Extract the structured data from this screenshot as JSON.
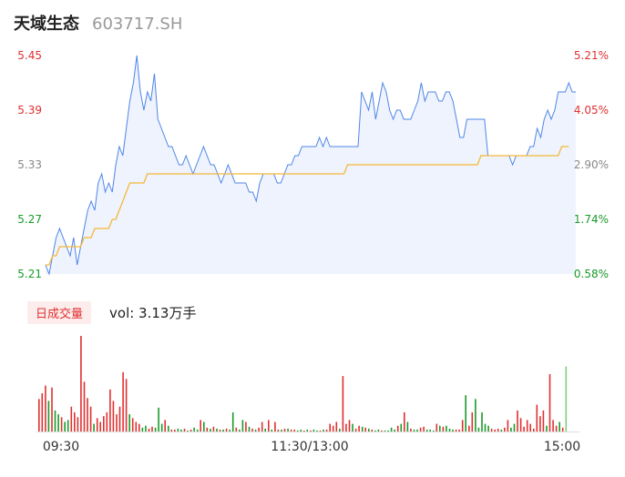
{
  "header": {
    "name": "天域生态",
    "code": "603717.SH"
  },
  "colors": {
    "up": "#e03030",
    "down": "#1a9a2a",
    "price": "#4f86e8",
    "avg": "#f5b83a",
    "fill": "#eef3fd",
    "axis": "#888888",
    "last": "#7fcf7f"
  },
  "chart_data": {
    "type": "line",
    "price_ticks": [
      "5.45",
      "5.39",
      "5.33",
      "5.27",
      "5.21"
    ],
    "percent_ticks": [
      "5.21%",
      "4.05%",
      "2.90%",
      "1.74%",
      "0.58%"
    ],
    "ylim": [
      5.21,
      5.45
    ],
    "time_ticks": [
      "09:30",
      "11:30/13:00",
      "15:00"
    ],
    "price": [
      5.22,
      5.21,
      5.23,
      5.25,
      5.26,
      5.25,
      5.24,
      5.23,
      5.25,
      5.22,
      5.24,
      5.26,
      5.28,
      5.29,
      5.28,
      5.31,
      5.32,
      5.3,
      5.31,
      5.3,
      5.33,
      5.35,
      5.34,
      5.37,
      5.4,
      5.42,
      5.45,
      5.41,
      5.39,
      5.41,
      5.4,
      5.43,
      5.38,
      5.37,
      5.36,
      5.35,
      5.35,
      5.34,
      5.33,
      5.33,
      5.34,
      5.33,
      5.32,
      5.33,
      5.34,
      5.35,
      5.34,
      5.33,
      5.33,
      5.32,
      5.31,
      5.32,
      5.33,
      5.32,
      5.31,
      5.31,
      5.31,
      5.31,
      5.3,
      5.3,
      5.29,
      5.31,
      5.32,
      5.32,
      5.32,
      5.32,
      5.31,
      5.31,
      5.32,
      5.33,
      5.33,
      5.34,
      5.34,
      5.35,
      5.35,
      5.35,
      5.35,
      5.35,
      5.36,
      5.35,
      5.36,
      5.35,
      5.35,
      5.35,
      5.35,
      5.35,
      5.35,
      5.35,
      5.35,
      5.35,
      5.41,
      5.4,
      5.39,
      5.41,
      5.38,
      5.4,
      5.42,
      5.41,
      5.39,
      5.38,
      5.39,
      5.39,
      5.38,
      5.38,
      5.38,
      5.39,
      5.4,
      5.42,
      5.4,
      5.41,
      5.41,
      5.41,
      5.4,
      5.4,
      5.41,
      5.41,
      5.4,
      5.38,
      5.36,
      5.36,
      5.38,
      5.38,
      5.38,
      5.38,
      5.38,
      5.38,
      5.34,
      5.34,
      5.34,
      5.34,
      5.34,
      5.34,
      5.34,
      5.33,
      5.34,
      5.34,
      5.34,
      5.34,
      5.35,
      5.35,
      5.37,
      5.36,
      5.38,
      5.39,
      5.38,
      5.39,
      5.41,
      5.41,
      5.41,
      5.42,
      5.41,
      5.41
    ],
    "avg": [
      5.22,
      5.22,
      5.23,
      5.23,
      5.24,
      5.24,
      5.24,
      5.24,
      5.24,
      5.24,
      5.24,
      5.25,
      5.25,
      5.25,
      5.26,
      5.26,
      5.26,
      5.26,
      5.26,
      5.27,
      5.27,
      5.28,
      5.29,
      5.3,
      5.31,
      5.31,
      5.31,
      5.31,
      5.31,
      5.32,
      5.32,
      5.32,
      5.32,
      5.32,
      5.32,
      5.32,
      5.32,
      5.32,
      5.32,
      5.32,
      5.32,
      5.32,
      5.32,
      5.32,
      5.32,
      5.32,
      5.32,
      5.32,
      5.32,
      5.32,
      5.32,
      5.32,
      5.32,
      5.32,
      5.32,
      5.32,
      5.32,
      5.32,
      5.32,
      5.32,
      5.32,
      5.32,
      5.32,
      5.32,
      5.32,
      5.32,
      5.32,
      5.32,
      5.32,
      5.32,
      5.32,
      5.32,
      5.32,
      5.32,
      5.32,
      5.32,
      5.32,
      5.32,
      5.32,
      5.32,
      5.32,
      5.32,
      5.32,
      5.32,
      5.32,
      5.32,
      5.33,
      5.33,
      5.33,
      5.33,
      5.33,
      5.33,
      5.33,
      5.33,
      5.33,
      5.33,
      5.33,
      5.33,
      5.33,
      5.33,
      5.33,
      5.33,
      5.33,
      5.33,
      5.33,
      5.33,
      5.33,
      5.33,
      5.33,
      5.33,
      5.33,
      5.33,
      5.33,
      5.33,
      5.33,
      5.33,
      5.33,
      5.33,
      5.33,
      5.33,
      5.33,
      5.33,
      5.33,
      5.33,
      5.34,
      5.34,
      5.34,
      5.34,
      5.34,
      5.34,
      5.34,
      5.34,
      5.34,
      5.34,
      5.34,
      5.34,
      5.34,
      5.34,
      5.34,
      5.34,
      5.34,
      5.34,
      5.34,
      5.34,
      5.34,
      5.34,
      5.34,
      5.35,
      5.35,
      5.35
    ],
    "volume": {
      "tab": "日成交量",
      "label": "vol: 3.13万手",
      "bars": [
        [
          34,
          1
        ],
        [
          40,
          1
        ],
        [
          48,
          1
        ],
        [
          32,
          0
        ],
        [
          46,
          1
        ],
        [
          22,
          0
        ],
        [
          18,
          0
        ],
        [
          15,
          1
        ],
        [
          10,
          0
        ],
        [
          12,
          0
        ],
        [
          26,
          1
        ],
        [
          20,
          1
        ],
        [
          15,
          1
        ],
        [
          100,
          1
        ],
        [
          52,
          1
        ],
        [
          35,
          1
        ],
        [
          26,
          1
        ],
        [
          8,
          0
        ],
        [
          14,
          1
        ],
        [
          10,
          1
        ],
        [
          16,
          1
        ],
        [
          20,
          1
        ],
        [
          44,
          1
        ],
        [
          32,
          1
        ],
        [
          18,
          1
        ],
        [
          26,
          1
        ],
        [
          62,
          1
        ],
        [
          55,
          1
        ],
        [
          18,
          0
        ],
        [
          14,
          1
        ],
        [
          10,
          1
        ],
        [
          8,
          1
        ],
        [
          4,
          0
        ],
        [
          6,
          0
        ],
        [
          3,
          1
        ],
        [
          5,
          1
        ],
        [
          4,
          0
        ],
        [
          25,
          0
        ],
        [
          8,
          0
        ],
        [
          12,
          1
        ],
        [
          6,
          0
        ],
        [
          2,
          1
        ],
        [
          2,
          1
        ],
        [
          3,
          0
        ],
        [
          2,
          0
        ],
        [
          3,
          1
        ],
        [
          1,
          0
        ],
        [
          2,
          1
        ],
        [
          4,
          0
        ],
        [
          2,
          0
        ],
        [
          12,
          1
        ],
        [
          10,
          0
        ],
        [
          4,
          1
        ],
        [
          3,
          0
        ],
        [
          5,
          1
        ],
        [
          3,
          0
        ],
        [
          2,
          1
        ],
        [
          2,
          0
        ],
        [
          3,
          1
        ],
        [
          2,
          0
        ],
        [
          20,
          0
        ],
        [
          4,
          1
        ],
        [
          2,
          0
        ],
        [
          12,
          0
        ],
        [
          10,
          1
        ],
        [
          5,
          0
        ],
        [
          3,
          1
        ],
        [
          2,
          0
        ],
        [
          4,
          1
        ],
        [
          10,
          1
        ],
        [
          3,
          0
        ],
        [
          12,
          1
        ],
        [
          2,
          0
        ],
        [
          10,
          1
        ],
        [
          2,
          1
        ],
        [
          2,
          0
        ],
        [
          3,
          1
        ],
        [
          3,
          0
        ],
        [
          2,
          1
        ],
        [
          2,
          1
        ],
        [
          1,
          0
        ],
        [
          2,
          0
        ],
        [
          1,
          1
        ],
        [
          2,
          0
        ],
        [
          1,
          1
        ],
        [
          2,
          0
        ],
        [
          1,
          0
        ],
        [
          1,
          1
        ],
        [
          2,
          0
        ],
        [
          2,
          1
        ],
        [
          8,
          1
        ],
        [
          6,
          1
        ],
        [
          10,
          1
        ],
        [
          3,
          0
        ],
        [
          58,
          1
        ],
        [
          8,
          1
        ],
        [
          12,
          1
        ],
        [
          8,
          0
        ],
        [
          3,
          1
        ],
        [
          6,
          1
        ],
        [
          5,
          0
        ],
        [
          4,
          1
        ],
        [
          3,
          0
        ],
        [
          2,
          1
        ],
        [
          1,
          0
        ],
        [
          2,
          0
        ],
        [
          1,
          1
        ],
        [
          1,
          0
        ],
        [
          1,
          0
        ],
        [
          4,
          0
        ],
        [
          2,
          0
        ],
        [
          6,
          1
        ],
        [
          8,
          0
        ],
        [
          20,
          1
        ],
        [
          10,
          0
        ],
        [
          3,
          1
        ],
        [
          2,
          0
        ],
        [
          2,
          0
        ],
        [
          4,
          1
        ],
        [
          5,
          1
        ],
        [
          2,
          0
        ],
        [
          2,
          0
        ],
        [
          1,
          0
        ],
        [
          8,
          1
        ],
        [
          6,
          0
        ],
        [
          5,
          1
        ],
        [
          6,
          0
        ],
        [
          3,
          0
        ],
        [
          2,
          0
        ],
        [
          2,
          1
        ],
        [
          2,
          1
        ],
        [
          12,
          1
        ],
        [
          38,
          0
        ],
        [
          6,
          1
        ],
        [
          20,
          1
        ],
        [
          34,
          0
        ],
        [
          4,
          0
        ],
        [
          20,
          0
        ],
        [
          8,
          0
        ],
        [
          6,
          0
        ],
        [
          3,
          1
        ],
        [
          2,
          1
        ],
        [
          3,
          1
        ],
        [
          2,
          0
        ],
        [
          4,
          1
        ],
        [
          12,
          1
        ],
        [
          4,
          0
        ],
        [
          8,
          0
        ],
        [
          22,
          1
        ],
        [
          14,
          1
        ],
        [
          5,
          1
        ],
        [
          12,
          1
        ],
        [
          8,
          1
        ],
        [
          3,
          1
        ],
        [
          28,
          1
        ],
        [
          16,
          1
        ],
        [
          22,
          1
        ],
        [
          6,
          0
        ],
        [
          60,
          1
        ],
        [
          12,
          1
        ],
        [
          6,
          1
        ],
        [
          10,
          0
        ],
        [
          4,
          1
        ],
        [
          68,
          0
        ]
      ]
    }
  }
}
